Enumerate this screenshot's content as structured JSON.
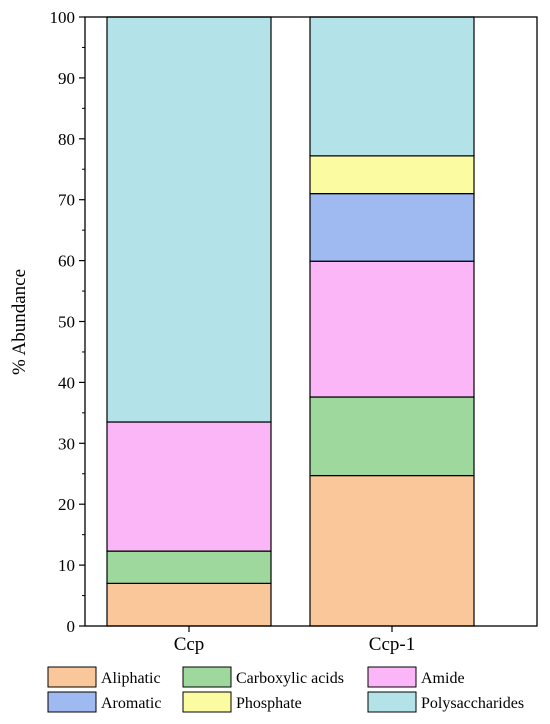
{
  "chart_data": {
    "type": "bar",
    "stacked": true,
    "categories": [
      "Ccp",
      "Ccp-1"
    ],
    "series": [
      {
        "name": "Aliphatic",
        "color": "#f9c79a",
        "values": [
          7.0,
          24.7
        ]
      },
      {
        "name": "Carboxylic acids",
        "color": "#9fd89c",
        "values": [
          5.3,
          12.9
        ]
      },
      {
        "name": "Amide",
        "color": "#fbb6f7",
        "values": [
          21.2,
          22.3
        ]
      },
      {
        "name": "Aromatic",
        "color": "#9fb9f1",
        "values": [
          0,
          11.1
        ]
      },
      {
        "name": "Phosphate",
        "color": "#fbfba2",
        "values": [
          0,
          6.2
        ]
      },
      {
        "name": "Polysaccharides",
        "color": "#b3e3e8",
        "values": [
          66.5,
          22.8
        ]
      }
    ],
    "title": "",
    "xlabel": "",
    "ylabel": "% Abundance",
    "ylim": [
      0,
      100
    ],
    "yticks": [
      0,
      10,
      20,
      30,
      40,
      50,
      60,
      70,
      80,
      90,
      100
    ],
    "grid": false,
    "legend_position": "bottom"
  }
}
